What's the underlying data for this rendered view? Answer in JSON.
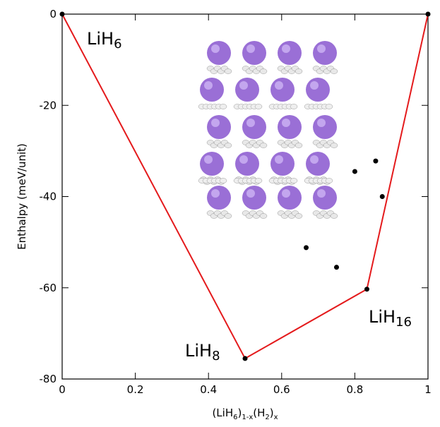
{
  "chart_data": {
    "type": "scatter",
    "x_label": [
      "(LiH",
      "6",
      ")",
      "1-x",
      "(H",
      "2",
      ")",
      "x"
    ],
    "y_label": "Enthalpy (meV/unit)",
    "xlim": [
      0,
      1
    ],
    "xticks": [
      0,
      0.2,
      0.4,
      0.6,
      0.8,
      1
    ],
    "ylim": [
      -80,
      0
    ],
    "yticks": [
      0,
      -20,
      -40,
      -60,
      -80
    ],
    "hull": {
      "color": "#e41a1c",
      "x": [
        0,
        0.5,
        0.833,
        1
      ],
      "values": [
        0,
        -75.5,
        -60.3,
        0
      ]
    },
    "points": {
      "color": "#000000",
      "x": [
        0.667,
        0.75,
        0.8,
        0.857,
        0.875
      ],
      "values": [
        -51.2,
        -55.5,
        -34.5,
        -32.2,
        -40
      ]
    },
    "annotations": [
      [
        "LiH",
        "6"
      ],
      [
        "LiH",
        "8"
      ],
      [
        "LiH",
        "16"
      ]
    ]
  }
}
